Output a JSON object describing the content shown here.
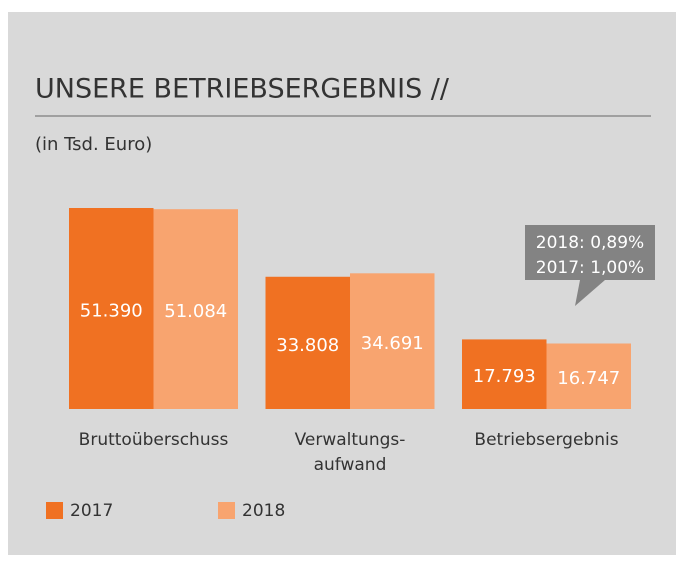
{
  "chart_data": {
    "type": "bar",
    "title": "UNSERE BETRIEBSERGEBNIS //",
    "subtitle": "(in Tsd. Euro)",
    "categories": [
      "Bruttoüberschuss",
      "Verwaltungs-\naufwand",
      "Betriebsergebnis"
    ],
    "series": [
      {
        "name": "2017",
        "color": "#f07122",
        "values": [
          51390,
          33808,
          17793
        ],
        "value_labels": [
          "51.390",
          "33.808",
          "17.793"
        ]
      },
      {
        "name": "2018",
        "color": "#f8a46f",
        "values": [
          51084,
          34691,
          16747
        ],
        "value_labels": [
          "51.084",
          "34.691",
          "16.747"
        ]
      }
    ],
    "annotations": [
      "2018: 0,89%",
      "2017: 1,00%"
    ]
  }
}
